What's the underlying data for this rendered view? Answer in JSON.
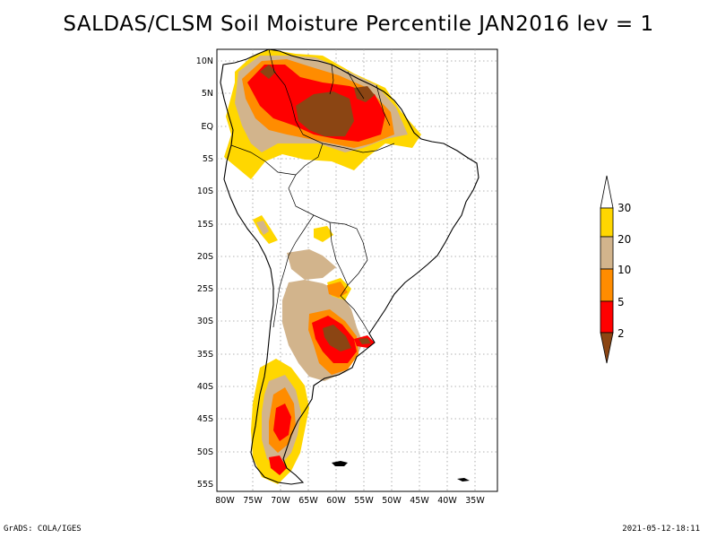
{
  "title": "SALDAS/CLSM Soil Moisture Percentile JAN2016 lev = 1",
  "footer": {
    "left": "GrADS: COLA/IGES",
    "right": "2021-05-12-18:11"
  },
  "map": {
    "region": "South America",
    "lat_labels": [
      "10N",
      "5N",
      "EQ",
      "5S",
      "10S",
      "15S",
      "20S",
      "25S",
      "30S",
      "35S",
      "40S",
      "45S",
      "50S",
      "55S"
    ],
    "lon_labels": [
      "80W",
      "75W",
      "70W",
      "65W",
      "60W",
      "55W",
      "50W",
      "45W",
      "40W",
      "35W"
    ]
  },
  "legend": {
    "labels": [
      "30",
      "20",
      "10",
      "5",
      "2"
    ],
    "colors": {
      "above_30": "#ffffff",
      "20_30": "#ffd700",
      "10_20": "#d2b48c",
      "5_10": "#ff8c00",
      "2_5": "#ff0000",
      "below_2": "#8b4513"
    }
  }
}
